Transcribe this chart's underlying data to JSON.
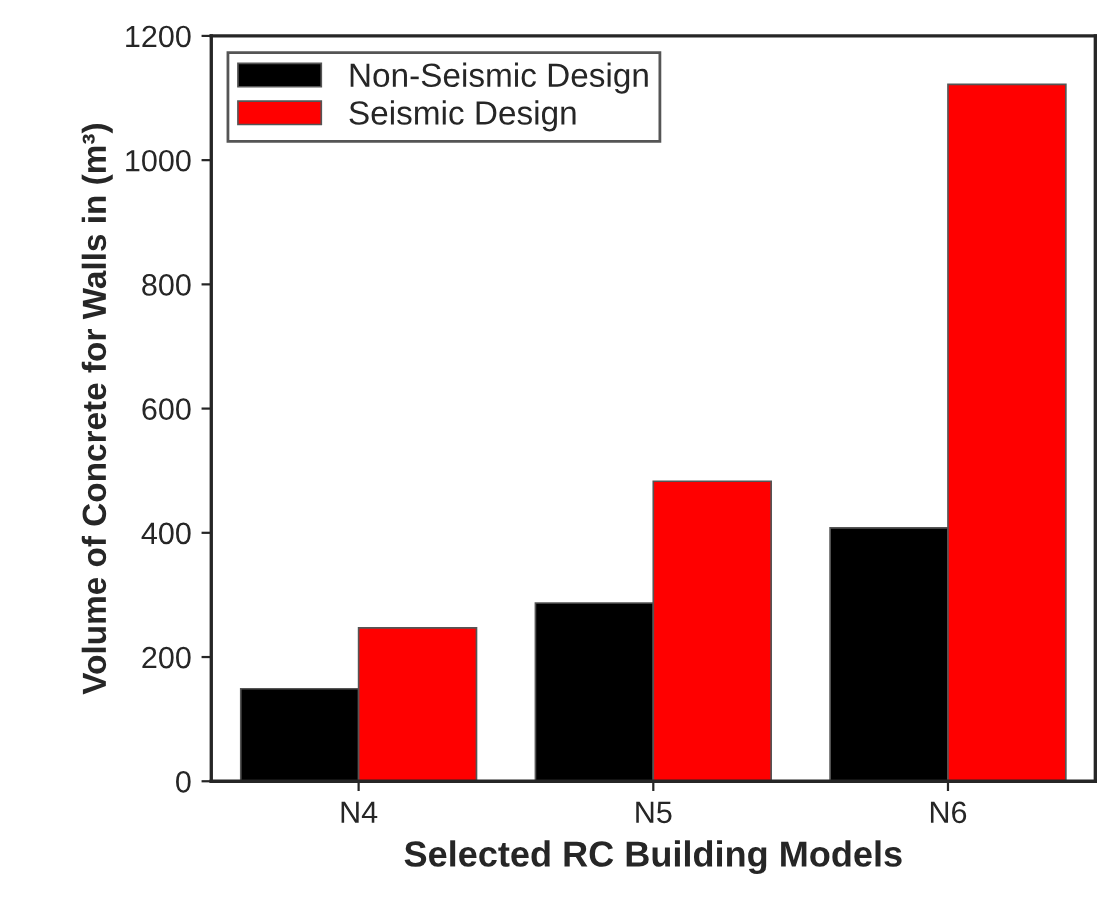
{
  "chart_data": {
    "type": "bar",
    "xlabel": "Selected RC Building Models",
    "ylabel": "Volume of Concrete for Walls in (m³)",
    "categories": [
      "N4",
      "N5",
      "N6"
    ],
    "series": [
      {
        "name": "Non-Seismic Design",
        "color": "#000000",
        "values": [
          149,
          287,
          408
        ]
      },
      {
        "name": "Seismic Design",
        "color": "#ff0000",
        "values": [
          247,
          483,
          1122
        ]
      }
    ],
    "ylim": [
      0,
      1200
    ],
    "yticks": [
      0,
      200,
      400,
      600,
      800,
      1000,
      1200
    ],
    "grid": false,
    "legend": "top left"
  }
}
